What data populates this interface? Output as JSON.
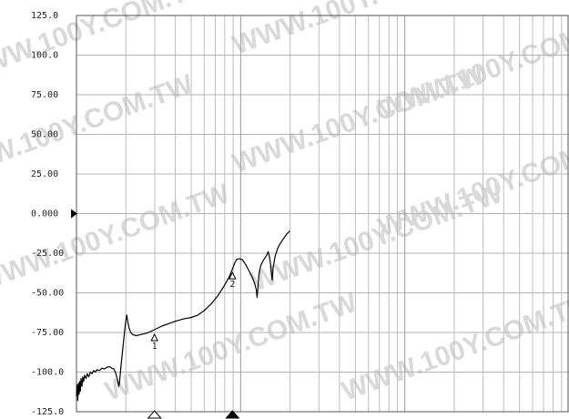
{
  "chart_data": {
    "type": "line",
    "title": "",
    "xlabel": "",
    "ylabel": "",
    "x_scale": "log",
    "ylim": [
      -125,
      125
    ],
    "y_ticks": [
      {
        "value": 125,
        "label": "125.0"
      },
      {
        "value": 100,
        "label": "100.0"
      },
      {
        "value": 75,
        "label": "75.00"
      },
      {
        "value": 50,
        "label": "50.00"
      },
      {
        "value": 25,
        "label": "25.00"
      },
      {
        "value": 0,
        "label": "0.000"
      },
      {
        "value": -25,
        "label": "-25.00"
      },
      {
        "value": -50,
        "label": "-50.00"
      },
      {
        "value": -75,
        "label": "-75.00"
      },
      {
        "value": -100,
        "label": "-100.0"
      },
      {
        "value": -125,
        "label": "-125.0"
      }
    ],
    "reference_value": 0,
    "grid": true,
    "series": [
      {
        "color": "#000000",
        "points": [
          [
            0.0,
            -115
          ],
          [
            0.004,
            -108
          ],
          [
            0.008,
            -118
          ],
          [
            0.012,
            -107
          ],
          [
            0.016,
            -114
          ],
          [
            0.02,
            -106
          ],
          [
            0.024,
            -112
          ],
          [
            0.028,
            -104
          ],
          [
            0.033,
            -109
          ],
          [
            0.038,
            -103
          ],
          [
            0.043,
            -106
          ],
          [
            0.05,
            -102
          ],
          [
            0.058,
            -104
          ],
          [
            0.066,
            -101
          ],
          [
            0.075,
            -103
          ],
          [
            0.085,
            -100
          ],
          [
            0.095,
            -101
          ],
          [
            0.105,
            -99
          ],
          [
            0.115,
            -100
          ],
          [
            0.125,
            -98.5
          ],
          [
            0.14,
            -99
          ],
          [
            0.155,
            -97.5
          ],
          [
            0.17,
            -98
          ],
          [
            0.185,
            -97
          ],
          [
            0.2,
            -96.5
          ],
          [
            0.215,
            -97.5
          ],
          [
            0.228,
            -98
          ],
          [
            0.24,
            -101
          ],
          [
            0.25,
            -105
          ],
          [
            0.258,
            -109
          ],
          [
            0.262,
            -107
          ],
          [
            0.272,
            -95
          ],
          [
            0.282,
            -85
          ],
          [
            0.292,
            -75
          ],
          [
            0.3,
            -68
          ],
          [
            0.306,
            -64
          ],
          [
            0.312,
            -68
          ],
          [
            0.32,
            -72
          ],
          [
            0.33,
            -75
          ],
          [
            0.345,
            -76.5
          ],
          [
            0.365,
            -77
          ],
          [
            0.385,
            -76.5
          ],
          [
            0.405,
            -76
          ],
          [
            0.425,
            -75.5
          ],
          [
            0.45,
            -74.5
          ],
          [
            0.48,
            -73
          ],
          [
            0.52,
            -71
          ],
          [
            0.56,
            -69.5
          ],
          [
            0.6,
            -68
          ],
          [
            0.65,
            -66.5
          ],
          [
            0.7,
            -65.5
          ],
          [
            0.74,
            -64
          ],
          [
            0.78,
            -61
          ],
          [
            0.82,
            -57
          ],
          [
            0.86,
            -52
          ],
          [
            0.9,
            -45.5
          ],
          [
            0.93,
            -40
          ],
          [
            0.95,
            -35
          ],
          [
            0.965,
            -31
          ],
          [
            0.975,
            -29
          ],
          [
            0.99,
            -28.5
          ],
          [
            1.01,
            -29
          ],
          [
            1.03,
            -32
          ],
          [
            1.05,
            -36
          ],
          [
            1.07,
            -40
          ],
          [
            1.085,
            -44
          ],
          [
            1.095,
            -48
          ],
          [
            1.1,
            -53
          ],
          [
            1.105,
            -47
          ],
          [
            1.112,
            -38
          ],
          [
            1.122,
            -33
          ],
          [
            1.135,
            -30
          ],
          [
            1.148,
            -28
          ],
          [
            1.16,
            -26
          ],
          [
            1.168,
            -24
          ],
          [
            1.175,
            -27
          ],
          [
            1.182,
            -32
          ],
          [
            1.188,
            -38
          ],
          [
            1.192,
            -42
          ],
          [
            1.198,
            -34
          ],
          [
            1.21,
            -27
          ],
          [
            1.225,
            -22
          ],
          [
            1.24,
            -19
          ],
          [
            1.26,
            -16
          ],
          [
            1.28,
            -13
          ],
          [
            1.3,
            -11
          ]
        ]
      }
    ],
    "markers": [
      {
        "label": "1",
        "x": 0.475,
        "y": -75,
        "style": "open"
      },
      {
        "label": "2",
        "x": 0.95,
        "y": -36,
        "style": "open"
      }
    ],
    "axis_markers": [
      {
        "x": 0.475,
        "style": "open"
      },
      {
        "x": 0.95,
        "style": "filled"
      }
    ]
  },
  "watermark_text": "WWW.100Y.COM.TW"
}
